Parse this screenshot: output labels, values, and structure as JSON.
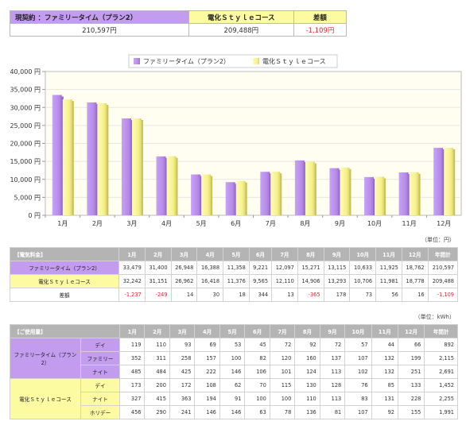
{
  "summary": {
    "h_current": "現契約 ：ファミリータイム（プラン2）",
    "h_new": "電化Ｓｔｙｌｅコース",
    "h_diff": "差額",
    "v_current": "210,597円",
    "v_new": "209,488円",
    "v_diff": "-1,109円"
  },
  "colors": {
    "purple": "#c39cf0",
    "yellow": "#fdfba2",
    "negative": "#e0262e"
  },
  "chart_data": {
    "type": "bar",
    "categories": [
      "1月",
      "2月",
      "3月",
      "4月",
      "5月",
      "6月",
      "7月",
      "8月",
      "9月",
      "10月",
      "11月",
      "12月"
    ],
    "series": [
      {
        "name": "ファミリータイム（プラン2）",
        "values": [
          33479,
          31400,
          26948,
          16388,
          11358,
          9221,
          12097,
          15271,
          13115,
          10633,
          11925,
          18762
        ]
      },
      {
        "name": "電化Ｓｔｙｌｅコース",
        "values": [
          32242,
          31151,
          26962,
          16418,
          11376,
          9565,
          12110,
          14906,
          13293,
          10706,
          11981,
          18778
        ]
      }
    ],
    "ylim": [
      0,
      40000
    ],
    "yticks": [
      "0 円",
      "5,000 円",
      "10,000 円",
      "15,000 円",
      "20,000 円",
      "25,000 円",
      "30,000 円",
      "35,000 円",
      "40,000 円"
    ],
    "grid": true,
    "legend": "top-center"
  },
  "price_table": {
    "unit": "（単位：円）",
    "header": "【電気料金】",
    "months": [
      "1月",
      "2月",
      "3月",
      "4月",
      "5月",
      "6月",
      "7月",
      "8月",
      "9月",
      "10月",
      "11月",
      "12月"
    ],
    "total_label": "年間計",
    "rows": [
      {
        "label": "ファミリータイム（プラン2）",
        "values": [
          "33,479",
          "31,400",
          "26,948",
          "16,388",
          "11,358",
          "9,221",
          "12,097",
          "15,271",
          "13,115",
          "10,633",
          "11,925",
          "18,762"
        ],
        "total": "210,597"
      },
      {
        "label": "電化Ｓｔｙｌｅコース",
        "values": [
          "32,242",
          "31,151",
          "26,962",
          "16,418",
          "11,376",
          "9,565",
          "12,110",
          "14,906",
          "13,293",
          "10,706",
          "11,981",
          "18,778"
        ],
        "total": "209,488"
      },
      {
        "label": "差額",
        "values": [
          "-1,237",
          "-249",
          "14",
          "30",
          "18",
          "344",
          "13",
          "-365",
          "178",
          "73",
          "56",
          "16"
        ],
        "total": "-1,109"
      }
    ]
  },
  "usage_table": {
    "unit": "（単位：kWh）",
    "header": "【ご使用量】",
    "groups": [
      {
        "label": "ファミリータイム（プラン2）",
        "rows": [
          {
            "sub": "デイ",
            "values": [
              "119",
              "110",
              "93",
              "69",
              "53",
              "45",
              "72",
              "92",
              "72",
              "57",
              "44",
              "66"
            ],
            "total": "892"
          },
          {
            "sub": "ファミリー",
            "values": [
              "352",
              "311",
              "258",
              "157",
              "100",
              "82",
              "120",
              "160",
              "137",
              "107",
              "132",
              "199"
            ],
            "total": "2,115"
          },
          {
            "sub": "ナイト",
            "values": [
              "485",
              "484",
              "425",
              "222",
              "146",
              "106",
              "101",
              "124",
              "113",
              "102",
              "132",
              "251"
            ],
            "total": "2,691"
          }
        ]
      },
      {
        "label": "電化Ｓｔｙｌｅコース",
        "rows": [
          {
            "sub": "デイ",
            "values": [
              "173",
              "200",
              "172",
              "108",
              "62",
              "70",
              "115",
              "130",
              "128",
              "76",
              "85",
              "133"
            ],
            "total": "1,452"
          },
          {
            "sub": "ナイト",
            "values": [
              "327",
              "415",
              "363",
              "194",
              "91",
              "100",
              "100",
              "110",
              "113",
              "83",
              "131",
              "228"
            ],
            "total": "2,255"
          },
          {
            "sub": "ホリデー",
            "values": [
              "456",
              "290",
              "241",
              "146",
              "146",
              "63",
              "78",
              "136",
              "81",
              "107",
              "92",
              "155"
            ],
            "total": "1,991"
          }
        ]
      }
    ]
  }
}
